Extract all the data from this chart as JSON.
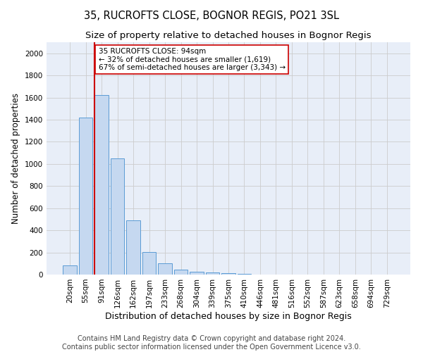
{
  "title": "35, RUCROFTS CLOSE, BOGNOR REGIS, PO21 3SL",
  "subtitle": "Size of property relative to detached houses in Bognor Regis",
  "xlabel": "Distribution of detached houses by size in Bognor Regis",
  "ylabel": "Number of detached properties",
  "footer_line1": "Contains HM Land Registry data © Crown copyright and database right 2024.",
  "footer_line2": "Contains public sector information licensed under the Open Government Licence v3.0.",
  "categories": [
    "20sqm",
    "55sqm",
    "91sqm",
    "126sqm",
    "162sqm",
    "197sqm",
    "233sqm",
    "268sqm",
    "304sqm",
    "339sqm",
    "375sqm",
    "410sqm",
    "446sqm",
    "481sqm",
    "516sqm",
    "552sqm",
    "587sqm",
    "623sqm",
    "658sqm",
    "694sqm",
    "729sqm"
  ],
  "values": [
    80,
    1420,
    1620,
    1050,
    490,
    205,
    105,
    45,
    28,
    18,
    10,
    5,
    0,
    0,
    0,
    0,
    0,
    0,
    0,
    0,
    0
  ],
  "bar_color": "#c5d8f0",
  "bar_edge_color": "#5b9bd5",
  "vline_position": 2,
  "vline_color": "#cc0000",
  "annotation_text": "35 RUCROFTS CLOSE: 94sqm\n← 32% of detached houses are smaller (1,619)\n67% of semi-detached houses are larger (3,343) →",
  "annotation_box_edge_color": "#cc0000",
  "annotation_box_face_color": "white",
  "ylim": [
    0,
    2100
  ],
  "yticks": [
    0,
    200,
    400,
    600,
    800,
    1000,
    1200,
    1400,
    1600,
    1800,
    2000
  ],
  "grid_color": "#cccccc",
  "background_color": "#e8eef8",
  "title_fontsize": 10.5,
  "subtitle_fontsize": 9.5,
  "xlabel_fontsize": 9,
  "ylabel_fontsize": 8.5,
  "tick_fontsize": 7.5,
  "annotation_fontsize": 7.5,
  "footer_fontsize": 7
}
